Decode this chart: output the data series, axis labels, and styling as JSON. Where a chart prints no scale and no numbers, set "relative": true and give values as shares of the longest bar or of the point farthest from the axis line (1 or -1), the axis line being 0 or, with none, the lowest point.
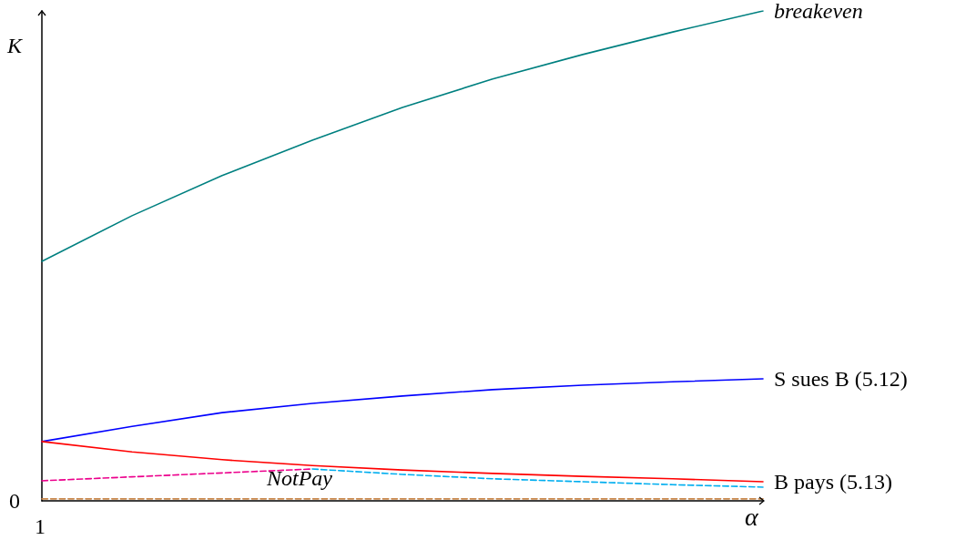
{
  "chart_data": {
    "type": "line",
    "relative": true,
    "xlabel": "α",
    "ylabel": "K",
    "categories": [
      null,
      null,
      null,
      null,
      null,
      null,
      null,
      null,
      null
    ],
    "legend": false,
    "grid": false,
    "marker": "none",
    "annotations": [
      "NotPay",
      "0",
      "1"
    ],
    "series": [
      {
        "name": "breakeven",
        "color": "#008080",
        "line_style": "solid",
        "values": [
          0.489,
          0.582,
          0.664,
          0.736,
          0.803,
          0.861,
          0.911,
          0.957,
          1
        ]
      },
      {
        "name": "S sues B (5.12)",
        "color": "#0000ff",
        "line_style": "solid",
        "values": [
          0.121,
          0.152,
          0.18,
          0.199,
          0.214,
          0.227,
          0.236,
          0.243,
          0.249
        ]
      },
      {
        "name": "B pays (5.13)",
        "color": "#ff0000",
        "line_style": "solid",
        "values": [
          0.121,
          0.1,
          0.084,
          0.072,
          0.063,
          0.056,
          0.05,
          0.045,
          0.039
        ]
      },
      {
        "color": "#ec008c",
        "line_style": "dashed",
        "values": [
          0.041,
          0.049,
          0.057,
          0.065,
          null,
          null,
          null,
          null,
          null
        ]
      },
      {
        "color": "#00aeef",
        "line_style": "dashed",
        "values": [
          null,
          null,
          null,
          0.065,
          0.054,
          0.045,
          0.039,
          0.033,
          0.028
        ]
      },
      {
        "color": "#c8864a",
        "line_style": "dashed",
        "values": [
          0.004,
          0.004,
          0.004,
          0.004,
          0.004,
          0.004,
          0.004,
          0.004,
          0.004
        ]
      }
    ]
  }
}
